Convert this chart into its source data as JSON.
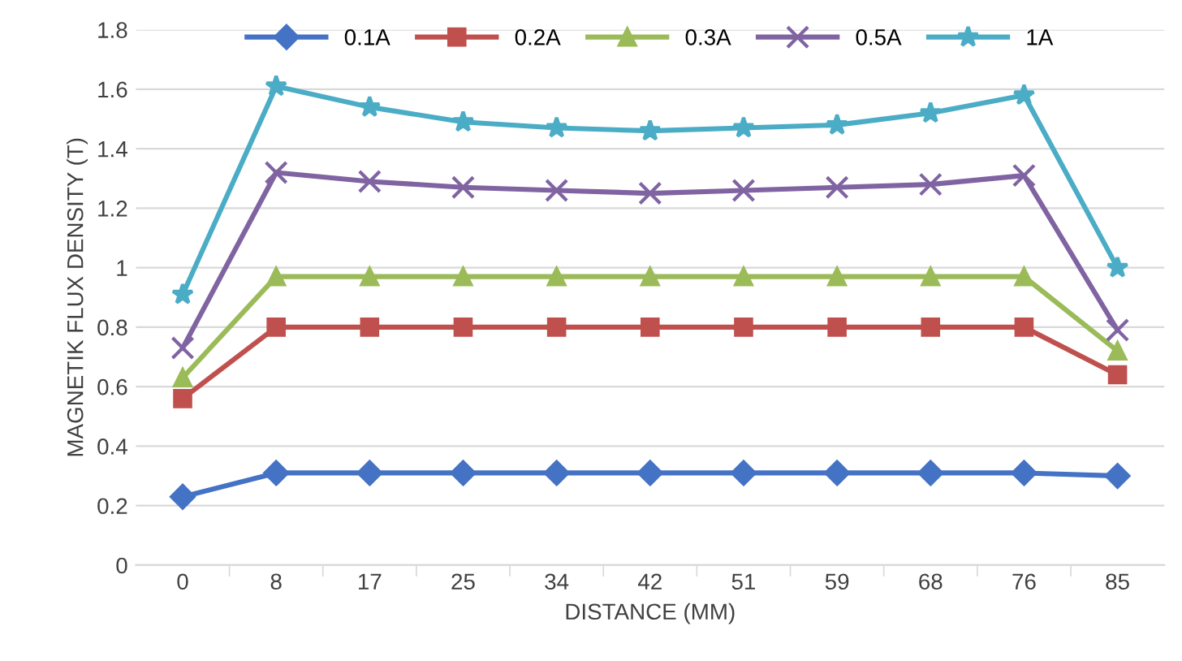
{
  "chart_data": {
    "type": "line",
    "xlabel": "DISTANCE (MM)",
    "ylabel": "MAGNETIK FLUX DENSITY (T)",
    "categories": [
      "0",
      "8",
      "17",
      "25",
      "34",
      "42",
      "51",
      "59",
      "68",
      "76",
      "85"
    ],
    "series": [
      {
        "name": "0.1A",
        "color": "#4472c4",
        "marker": "diamond",
        "values": [
          0.23,
          0.31,
          0.31,
          0.31,
          0.31,
          0.31,
          0.31,
          0.31,
          0.31,
          0.31,
          0.3
        ]
      },
      {
        "name": "0.2A",
        "color": "#c0504d",
        "marker": "square",
        "values": [
          0.56,
          0.8,
          0.8,
          0.8,
          0.8,
          0.8,
          0.8,
          0.8,
          0.8,
          0.8,
          0.64
        ]
      },
      {
        "name": "0.3A",
        "color": "#9bbb59",
        "marker": "triangle",
        "values": [
          0.63,
          0.97,
          0.97,
          0.97,
          0.97,
          0.97,
          0.97,
          0.97,
          0.97,
          0.97,
          0.72
        ]
      },
      {
        "name": "0.5A",
        "color": "#8064a2",
        "marker": "cross",
        "values": [
          0.73,
          1.32,
          1.29,
          1.27,
          1.26,
          1.25,
          1.26,
          1.27,
          1.28,
          1.31,
          0.79
        ]
      },
      {
        "name": "1A",
        "color": "#4bacc6",
        "marker": "star",
        "values": [
          0.91,
          1.61,
          1.54,
          1.49,
          1.47,
          1.46,
          1.47,
          1.48,
          1.52,
          1.58,
          1.0
        ]
      }
    ],
    "ylim": [
      0,
      1.8
    ],
    "yticks": [
      0,
      0.2,
      0.4,
      0.6,
      0.8,
      1,
      1.2,
      1.4,
      1.6,
      1.8
    ],
    "grid": "y",
    "legend": "top",
    "line_style": "solid"
  }
}
